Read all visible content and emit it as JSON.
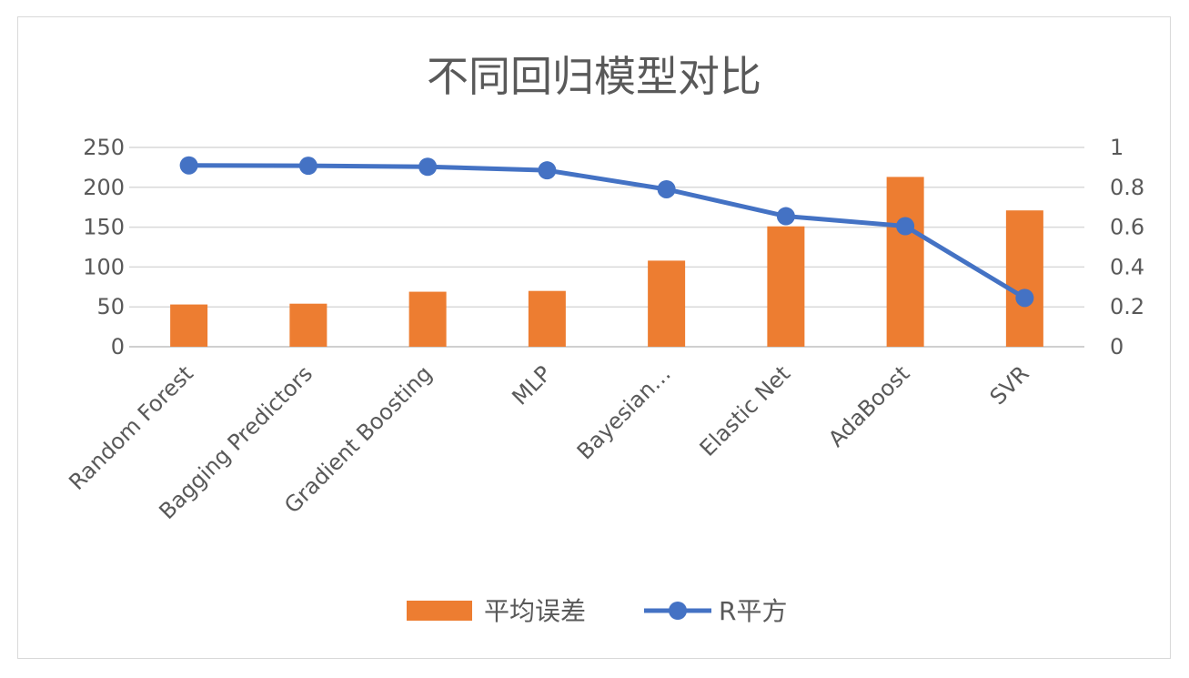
{
  "chart_data": {
    "type": "bar",
    "title": "不同回归模型对比",
    "categories": [
      "Random Forest",
      "Bagging Predictors",
      "Gradient Boosting",
      "MLP",
      "Bayesian…",
      "Elastic Net",
      "AdaBoost",
      "SVR"
    ],
    "series": [
      {
        "name": "平均误差",
        "type": "bar",
        "axis": "left",
        "color": "#ED7D31",
        "values": [
          53,
          54,
          69,
          70,
          108,
          151,
          213,
          171
        ]
      },
      {
        "name": "R平方",
        "type": "line",
        "axis": "right",
        "color": "#4472C4",
        "values": [
          0.91,
          0.908,
          0.903,
          0.885,
          0.79,
          0.655,
          0.605,
          0.245
        ]
      }
    ],
    "y_left": {
      "min": 0,
      "max": 250,
      "ticks": [
        "0",
        "50",
        "100",
        "150",
        "200",
        "250"
      ]
    },
    "y_right": {
      "min": 0,
      "max": 1,
      "ticks": [
        "0",
        "0.2",
        "0.4",
        "0.6",
        "0.8",
        "1"
      ]
    },
    "grid": true,
    "legend_position": "bottom"
  }
}
